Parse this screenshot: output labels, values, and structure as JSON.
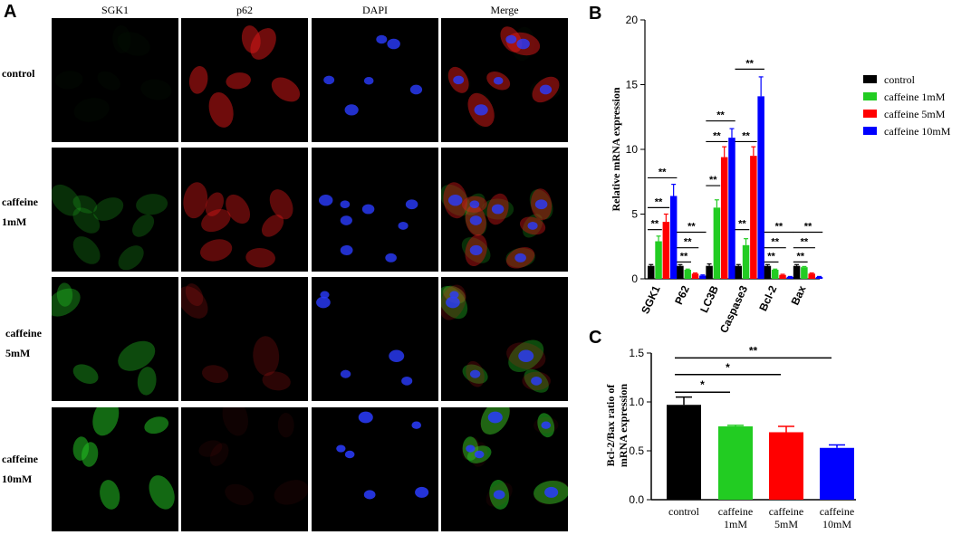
{
  "panels": {
    "a": "A",
    "b": "B",
    "c": "C"
  },
  "micrographs": {
    "columns": [
      "SGK1",
      "p62",
      "DAPI",
      "Merge"
    ],
    "rows": [
      {
        "line1": "control",
        "line2": ""
      },
      {
        "line1": "caffeine",
        "line2": "1mM"
      },
      {
        "line1": "caffeine",
        "line2": "5mM"
      },
      {
        "line1": "caffeine",
        "line2": "10mM"
      }
    ]
  },
  "colors": {
    "control": "#000000",
    "caffeine_1mM": "#22cc22",
    "caffeine_5mM": "#ff0000",
    "caffeine_10mM": "#0000ff"
  },
  "chart_data": [
    {
      "type": "bar",
      "panel": "B",
      "title": "",
      "xlabel": "",
      "ylabel": "Relative mRNA expression",
      "ylim": [
        0,
        20
      ],
      "yticks": [
        0,
        5,
        10,
        15,
        20
      ],
      "categories": [
        "SGK1",
        "P62",
        "LC3B",
        "Caspase3",
        "Bcl-2",
        "Bax"
      ],
      "legend_position": "top-right",
      "series": [
        {
          "name": "control",
          "color": "#000000",
          "values": [
            1.0,
            1.0,
            1.0,
            1.0,
            1.0,
            1.0
          ],
          "errors": [
            0.1,
            0.1,
            0.15,
            0.1,
            0.1,
            0.1
          ]
        },
        {
          "name": "caffeine 1mM",
          "color": "#22cc22",
          "values": [
            2.9,
            0.7,
            5.5,
            2.6,
            0.7,
            0.9
          ],
          "errors": [
            0.4,
            0.05,
            0.6,
            0.5,
            0.05,
            0.05
          ]
        },
        {
          "name": "caffeine 5mM",
          "color": "#ff0000",
          "values": [
            4.4,
            0.4,
            9.4,
            9.5,
            0.3,
            0.4
          ],
          "errors": [
            0.6,
            0.05,
            0.8,
            0.7,
            0.05,
            0.05
          ]
        },
        {
          "name": "caffeine 10mM",
          "color": "#0000ff",
          "values": [
            6.4,
            0.25,
            10.9,
            14.1,
            0.15,
            0.15
          ],
          "errors": [
            0.9,
            0.05,
            0.7,
            1.5,
            0.03,
            0.03
          ]
        }
      ],
      "significance": [
        {
          "category": 0,
          "from": 0,
          "to": 1,
          "y": 3.8,
          "label": "**"
        },
        {
          "category": 0,
          "from": 0,
          "to": 2,
          "y": 5.5,
          "label": "**"
        },
        {
          "category": 0,
          "from": 0,
          "to": 3,
          "y": 7.8,
          "label": "**"
        },
        {
          "category": 1,
          "from": 0,
          "to": 1,
          "y": 1.3,
          "label": "**"
        },
        {
          "category": 1,
          "from": 0,
          "to": 2,
          "y": 2.4,
          "label": "**"
        },
        {
          "category": 1,
          "from": 0,
          "to": 3,
          "y": 3.6,
          "label": "**"
        },
        {
          "category": 2,
          "from": 0,
          "to": 1,
          "y": 7.2,
          "label": "**"
        },
        {
          "category": 2,
          "from": 0,
          "to": 2,
          "y": 10.6,
          "label": "**"
        },
        {
          "category": 2,
          "from": 0,
          "to": 3,
          "y": 12.2,
          "label": "**"
        },
        {
          "category": 3,
          "from": 0,
          "to": 1,
          "y": 3.8,
          "label": "**"
        },
        {
          "category": 3,
          "from": 0,
          "to": 2,
          "y": 10.6,
          "label": "**"
        },
        {
          "category": 3,
          "from": 0,
          "to": 3,
          "y": 16.2,
          "label": "**"
        },
        {
          "category": 4,
          "from": 0,
          "to": 1,
          "y": 1.3,
          "label": "**"
        },
        {
          "category": 4,
          "from": 0,
          "to": 2,
          "y": 2.4,
          "label": "**"
        },
        {
          "category": 4,
          "from": 0,
          "to": 3,
          "y": 3.6,
          "label": "**"
        },
        {
          "category": 5,
          "from": 0,
          "to": 1,
          "y": 1.3,
          "label": "**"
        },
        {
          "category": 5,
          "from": 0,
          "to": 2,
          "y": 2.4,
          "label": "**"
        },
        {
          "category": 5,
          "from": 0,
          "to": 3,
          "y": 3.6,
          "label": "**"
        }
      ]
    },
    {
      "type": "bar",
      "panel": "C",
      "title": "",
      "xlabel": "",
      "ylabel_line1": "Bcl-2/Bax ratio of",
      "ylabel_line2": "mRNA expression",
      "ylim": [
        0,
        1.5
      ],
      "yticks": [
        "0.0",
        "0.5",
        "1.0",
        "1.5"
      ],
      "categories": [
        {
          "line1": "control",
          "line2": ""
        },
        {
          "line1": "caffeine",
          "line2": "1mM"
        },
        {
          "line1": "caffeine",
          "line2": "5mM"
        },
        {
          "line1": "caffeine",
          "line2": "10mM"
        }
      ],
      "values": [
        0.97,
        0.75,
        0.69,
        0.53
      ],
      "errors": [
        0.08,
        0.01,
        0.06,
        0.03
      ],
      "colors": [
        "#000000",
        "#22cc22",
        "#ff0000",
        "#0000ff"
      ],
      "significance": [
        {
          "from": 0,
          "to": 1,
          "y": 1.1,
          "label": "*"
        },
        {
          "from": 0,
          "to": 2,
          "y": 1.28,
          "label": "*"
        },
        {
          "from": 0,
          "to": 3,
          "y": 1.45,
          "label": "**"
        }
      ]
    }
  ]
}
